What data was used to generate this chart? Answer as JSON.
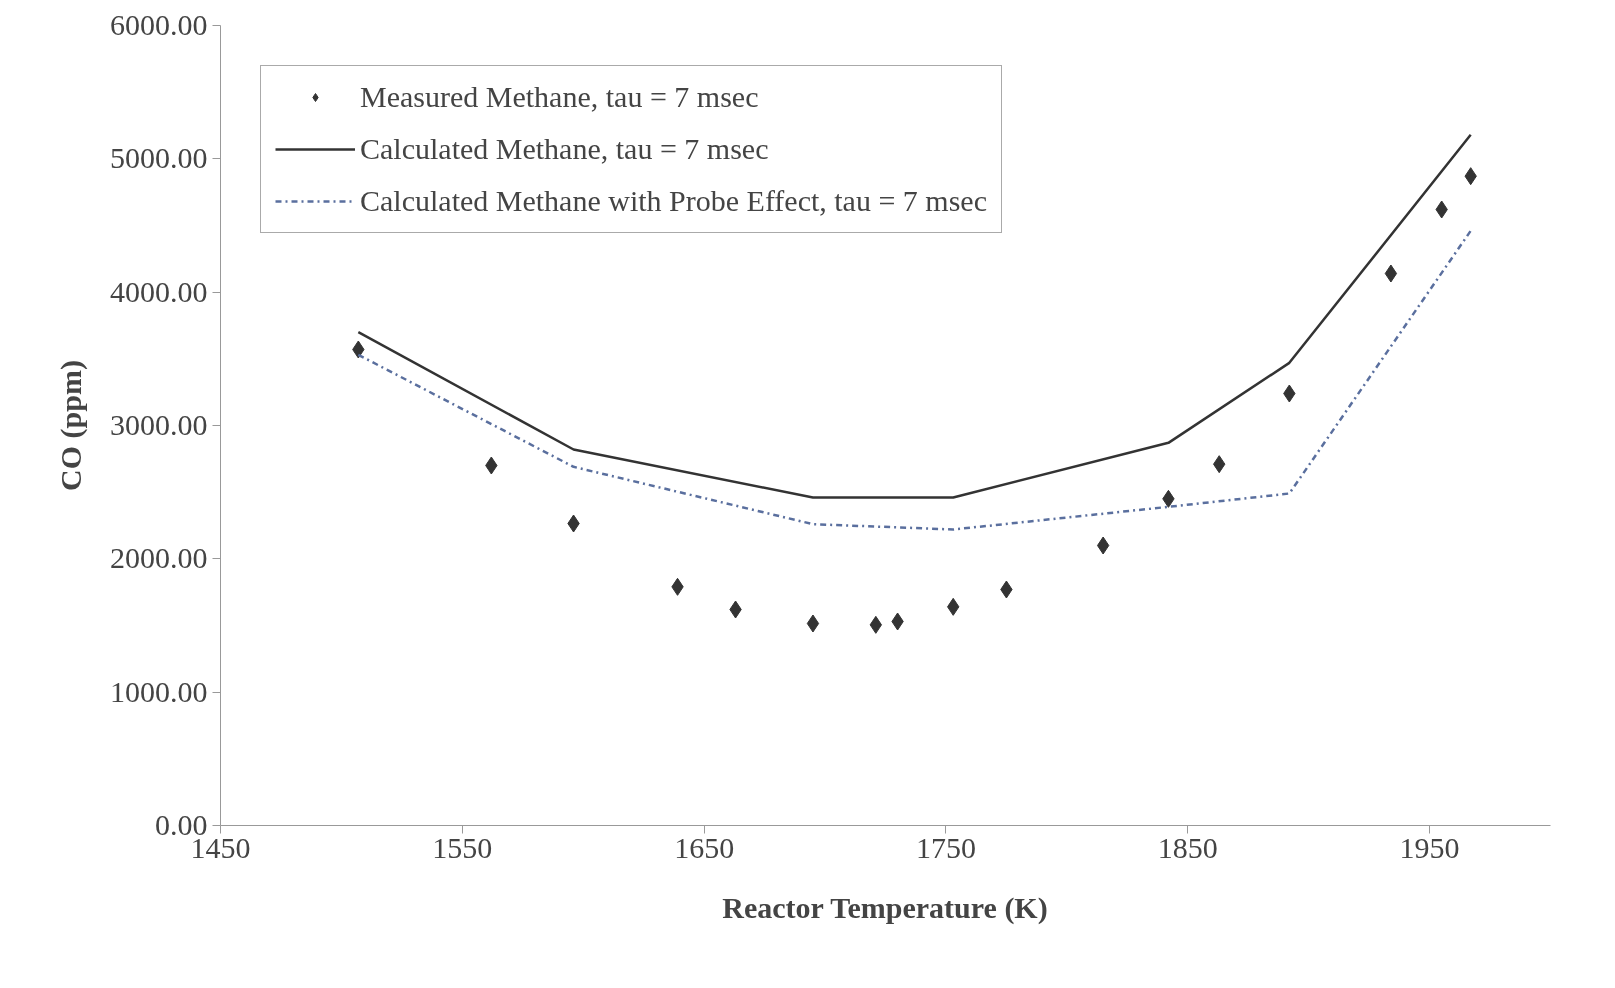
{
  "chart_data": {
    "type": "scatter",
    "xlabel": "Reactor Temperature (K)",
    "ylabel": "CO (ppm)",
    "xlim": [
      1450,
      2000
    ],
    "xticks": [
      1450,
      1550,
      1650,
      1750,
      1850,
      1950
    ],
    "ylim": [
      0,
      6000
    ],
    "yticks": [
      {
        "value": 0,
        "label": "0.00"
      },
      {
        "value": 1000,
        "label": "1000.00"
      },
      {
        "value": 2000,
        "label": "2000.00"
      },
      {
        "value": 3000,
        "label": "3000.00"
      },
      {
        "value": 4000,
        "label": "4000.00"
      },
      {
        "value": 5000,
        "label": "5000.00"
      },
      {
        "value": 6000,
        "label": "6000.00"
      }
    ],
    "grid": false,
    "legend": "top left",
    "series": [
      {
        "name": "Measured Methane, tau = 7 msec",
        "marker": "diamond",
        "color": "#333333",
        "x": [
          1507,
          1562,
          1596,
          1639,
          1663,
          1695,
          1721,
          1730,
          1753,
          1775,
          1815,
          1842,
          1863,
          1892,
          1934,
          1955,
          1967
        ],
        "values": [
          3570,
          2700,
          2265,
          1790,
          1620,
          1515,
          1505,
          1530,
          1640,
          1770,
          2100,
          2450,
          2710,
          3240,
          4140,
          4620,
          4870
        ]
      },
      {
        "name": "Calculated Methane, tau = 7 msec",
        "type": "line",
        "line_style": "solid",
        "color": "#333333",
        "x": [
          1507,
          1596,
          1695,
          1753,
          1842,
          1892,
          1967
        ],
        "values": [
          3700,
          2820,
          2460,
          2460,
          2870,
          3470,
          5180
        ]
      },
      {
        "name": "Calculated Methane with Probe Effect, tau = 7 msec",
        "type": "line",
        "line_style": "dashdot",
        "color": "#5a6f9e",
        "x": [
          1507,
          1596,
          1695,
          1753,
          1842,
          1892,
          1967
        ],
        "values": [
          3530,
          2690,
          2260,
          2220,
          2390,
          2490,
          4460
        ]
      }
    ]
  }
}
